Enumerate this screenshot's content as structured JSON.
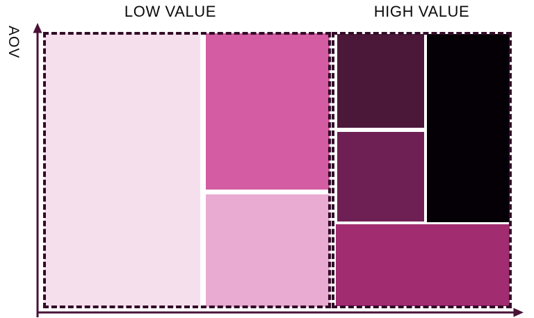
{
  "colors": {
    "background": "#FFFFFF",
    "axis": "#4A1237",
    "dash_border": "#320B27",
    "heading_text": "#0B0B0B",
    "segment_divider_gap": "#FFFFFF"
  },
  "chart_data": {
    "type": "treemap",
    "variant": "mosaic (two dashed-outline groups of proportional rectangles)",
    "title": "",
    "xlabel": "",
    "ylabel": "AOV",
    "legend": "none",
    "axis_arrows": [
      "y-axis arrow points up",
      "x-axis arrow points right"
    ],
    "groups": [
      {
        "label": "LOW VALUE",
        "border_style": "dashed",
        "width_fraction_of_chart": 0.615,
        "segments": [
          {
            "name": "pale-pink-large",
            "color": "#F6DFED",
            "x": 0.005,
            "y": 0.005,
            "w": 0.541,
            "h": 0.99
          },
          {
            "name": "medium-pink-top",
            "color": "#D35CA3",
            "x": 0.565,
            "y": 0.005,
            "w": 0.43,
            "h": 0.565
          },
          {
            "name": "light-pink-bottom",
            "color": "#E9ABD1",
            "x": 0.565,
            "y": 0.588,
            "w": 0.43,
            "h": 0.407
          }
        ]
      },
      {
        "label": "HIGH VALUE",
        "border_style": "dashed",
        "width_fraction_of_chart": 0.385,
        "segments": [
          {
            "name": "dark-purple-top-left",
            "color": "#4C1839",
            "x": 0.031,
            "y": 0.008,
            "w": 0.483,
            "h": 0.339
          },
          {
            "name": "black-right-column",
            "color": "#050006",
            "x": 0.529,
            "y": 0.008,
            "w": 0.46,
            "h": 0.681
          },
          {
            "name": "mid-magenta-middle-left",
            "color": "#6E2054",
            "x": 0.031,
            "y": 0.362,
            "w": 0.483,
            "h": 0.324
          },
          {
            "name": "magenta-bottom-wide",
            "color": "#A12C70",
            "x": 0.022,
            "y": 0.696,
            "w": 0.966,
            "h": 0.296
          }
        ]
      }
    ]
  }
}
